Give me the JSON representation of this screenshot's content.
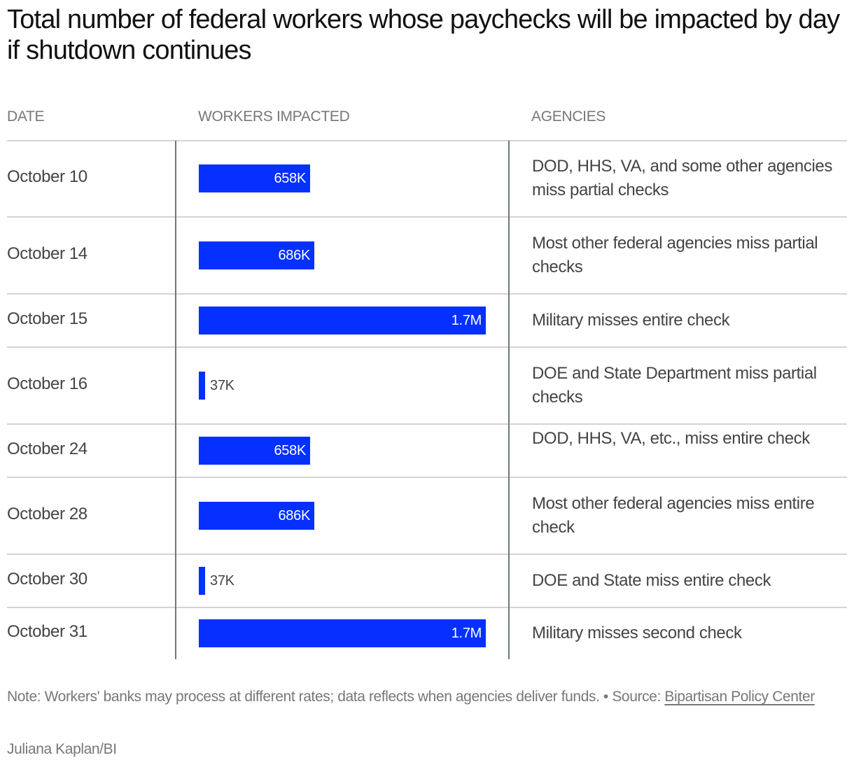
{
  "chart_data": {
    "type": "bar",
    "orientation": "horizontal",
    "title": "Total number of federal workers whose paychecks will be impacted by day if shutdown continues",
    "columns": [
      "DATE",
      "WORKERS IMPACTED",
      "AGENCIES"
    ],
    "categories": [
      "October 10",
      "October 14",
      "October 15",
      "October 16",
      "October 24",
      "October 28",
      "October 30",
      "October 31"
    ],
    "values": [
      658000,
      686000,
      1700000,
      37000,
      658000,
      686000,
      37000,
      1700000
    ],
    "value_labels": [
      "658K",
      "686K",
      "1.7M",
      "37K",
      "658K",
      "686K",
      "37K",
      "1.7M"
    ],
    "agencies": [
      "DOD, HHS, VA, and some other agencies miss partial checks",
      "Most other federal agencies miss partial checks",
      "Military misses entire check",
      "DOE and State Department miss partial checks",
      "DOD, HHS, VA, etc., miss entire check",
      "Most other federal agencies miss entire check",
      "DOE and State miss entire check",
      "Military misses second check"
    ],
    "xlim": [
      0,
      1700000
    ],
    "grid": false,
    "bar_color": "#0530ff"
  },
  "footer": {
    "note": "Note: Workers' banks may process at different rates; data reflects when agencies deliver funds. • Source: ",
    "source_link": "Bipartisan Policy Center",
    "credit": "Juliana Kaplan/BI"
  }
}
